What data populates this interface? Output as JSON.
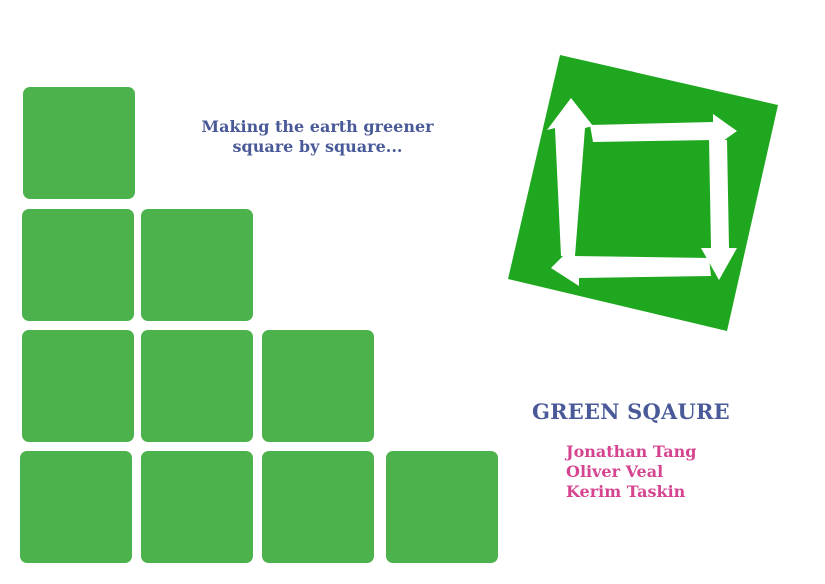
{
  "tagline": {
    "line1": "Making the earth greener",
    "line2": "square by square..."
  },
  "logo": {
    "icon": "recycle-square-icon",
    "color": "#1fa81f"
  },
  "brand": {
    "name": "GREEN SQAURE"
  },
  "authors": [
    "Jonathan Tang",
    "Oliver Veal",
    "Kerim Taskin"
  ],
  "colors": {
    "tile": "#4cb34c",
    "logo": "#1fa81f",
    "title": "#4a5a99",
    "authors": "#d64490"
  }
}
